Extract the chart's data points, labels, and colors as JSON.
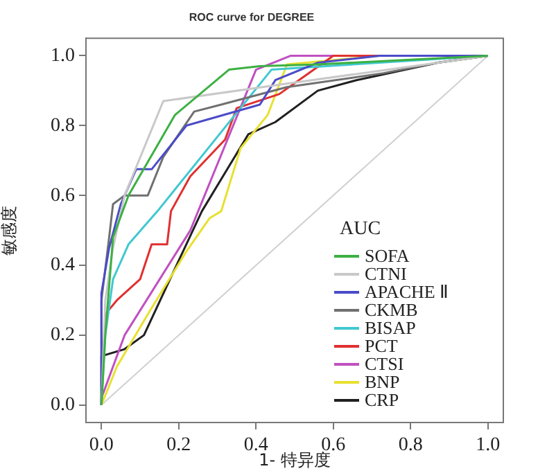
{
  "chart_data": {
    "type": "line",
    "title": "ROC curve for DEGREE",
    "xlabel": "1- 特异度",
    "ylabel": "敏感度",
    "legend_title": "AUC",
    "legend": "bottom right",
    "grid": false,
    "marker": "none",
    "line_style": "solid",
    "xlim": [
      -0.04,
      1.04
    ],
    "ylim": [
      -0.05,
      1.05
    ],
    "xticks": [
      {
        "value": 0,
        "label": "0.0"
      },
      0.2,
      0.4,
      0.6,
      0.8,
      {
        "value": 1,
        "label": "1.0"
      }
    ],
    "yticks": [
      {
        "value": 0,
        "label": "0.0"
      },
      0.2,
      0.4,
      0.6,
      0.8,
      {
        "value": 1,
        "label": "1.0"
      }
    ],
    "series": [
      {
        "name": "SOFA",
        "color": "#3cb043",
        "x": [
          0,
          0.01,
          0.03,
          0.07,
          0.19,
          0.33,
          0.41,
          0.56,
          1
        ],
        "values": [
          0,
          0.2,
          0.48,
          0.6,
          0.83,
          0.96,
          0.97,
          0.975,
          1
        ]
      },
      {
        "name": "CTNI",
        "color": "#c8c8c8",
        "x": [
          0,
          0.01,
          0.03,
          0.06,
          0.16,
          0.48,
          1
        ],
        "values": [
          0,
          0.3,
          0.45,
          0.6,
          0.87,
          0.92,
          1
        ]
      },
      {
        "name": "APACHE Ⅱ",
        "color": "#4b4bc8",
        "x": [
          0,
          0,
          0.02,
          0.05,
          0.09,
          0.13,
          0.22,
          0.41,
          0.45,
          0.56,
          0.72,
          1
        ],
        "values": [
          0,
          0.32,
          0.45,
          0.575,
          0.675,
          0.675,
          0.8,
          0.86,
          0.93,
          0.98,
          1,
          1
        ]
      },
      {
        "name": "CKMB",
        "color": "#707070",
        "x": [
          0,
          0,
          0.02,
          0.03,
          0.06,
          0.12,
          0.16,
          0.24,
          0.31,
          0.48,
          0.73,
          0.87,
          1
        ],
        "values": [
          0,
          0.3,
          0.48,
          0.575,
          0.6,
          0.6,
          0.71,
          0.84,
          0.86,
          0.91,
          0.95,
          0.98,
          1
        ]
      },
      {
        "name": "BISAP",
        "color": "#40c8d0",
        "x": [
          0,
          0.01,
          0.03,
          0.07,
          0.145,
          0.44,
          1
        ],
        "values": [
          0,
          0.2,
          0.36,
          0.46,
          0.555,
          0.96,
          1
        ]
      },
      {
        "name": "PCT",
        "color": "#e03030",
        "x": [
          0,
          0.01,
          0.04,
          0.1,
          0.13,
          0.17,
          0.18,
          0.23,
          0.32,
          0.35,
          0.46,
          0.53,
          0.6,
          1
        ],
        "values": [
          0,
          0.26,
          0.3,
          0.36,
          0.46,
          0.46,
          0.555,
          0.655,
          0.76,
          0.85,
          0.89,
          0.945,
          1,
          1
        ]
      },
      {
        "name": "CTSI",
        "color": "#c050c0",
        "x": [
          0,
          0,
          0.06,
          0.23,
          0.4,
          0.49,
          1
        ],
        "values": [
          0,
          0.02,
          0.2,
          0.5,
          0.96,
          1,
          1
        ]
      },
      {
        "name": "BNP",
        "color": "#e8e030",
        "x": [
          0,
          0.04,
          0.12,
          0.22,
          0.28,
          0.31,
          0.36,
          0.43,
          0.48,
          0.72,
          1
        ],
        "values": [
          0,
          0.11,
          0.26,
          0.44,
          0.535,
          0.555,
          0.735,
          0.83,
          0.975,
          1,
          1
        ]
      },
      {
        "name": "CRP",
        "color": "#202020",
        "x": [
          0,
          0,
          0.06,
          0.11,
          0.19,
          0.26,
          0.38,
          0.45,
          0.56,
          0.66,
          0.87,
          1
        ],
        "values": [
          0,
          0.14,
          0.16,
          0.2,
          0.39,
          0.555,
          0.775,
          0.81,
          0.9,
          0.93,
          0.98,
          1
        ]
      },
      {
        "color": "#d0d0d0",
        "x": [
          0,
          1
        ],
        "values": [
          0,
          1
        ]
      }
    ]
  }
}
